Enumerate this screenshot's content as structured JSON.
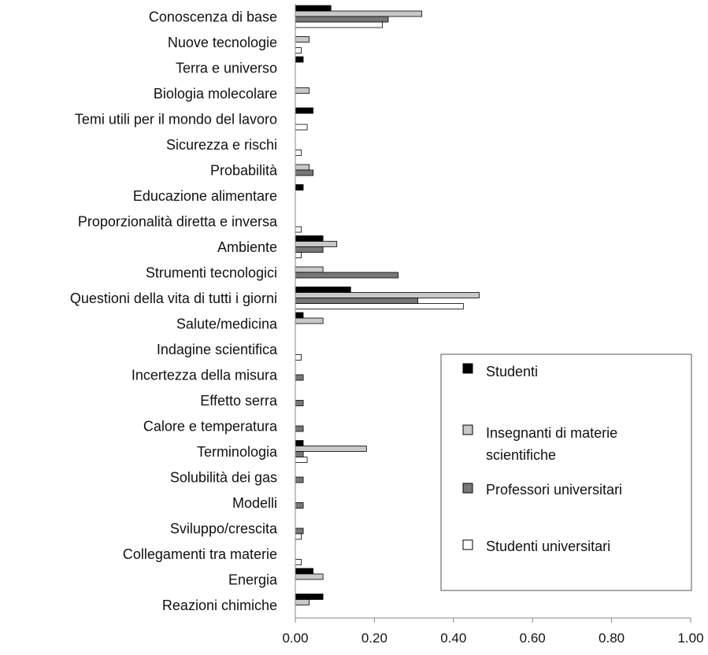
{
  "chart_data": {
    "type": "bar",
    "orientation": "horizontal",
    "categories": [
      "Conoscenza di base",
      "Nuove tecnologie",
      "Terra e universo",
      "Biologia molecolare",
      "Temi utili per il mondo del lavoro",
      "Sicurezza e rischi",
      "Probabilità",
      "Educazione alimentare",
      "Proporzionalità diretta e inversa",
      "Ambiente",
      "Strumenti tecnologici",
      "Questioni della vita di tutti i giorni",
      "Salute/medicina",
      "Indagine scientifica",
      "Incertezza della misura",
      "Effetto serra",
      "Calore e temperatura",
      "Terminologia",
      "Solubilità dei gas",
      "Modelli",
      "Sviluppo/crescita",
      "Collegamenti tra materie",
      "Energia",
      "Reazioni chimiche"
    ],
    "series": [
      {
        "name": "Studenti",
        "color": "#000000",
        "values": [
          0.09,
          0,
          0.02,
          0,
          0.045,
          0,
          0,
          0.02,
          0,
          0.07,
          0,
          0.14,
          0.02,
          0,
          0,
          0,
          0,
          0.02,
          0,
          0,
          0,
          0,
          0.045,
          0.07
        ]
      },
      {
        "name": "Insegnanti di materie scientifiche",
        "color": "#c8c8c8",
        "values": [
          0.32,
          0.035,
          0,
          0.035,
          0,
          0,
          0.035,
          0,
          0,
          0.105,
          0.07,
          0.465,
          0.07,
          0,
          0,
          0,
          0,
          0.18,
          0,
          0,
          0,
          0,
          0.07,
          0.035
        ]
      },
      {
        "name": "Professori universitari",
        "color": "#777777",
        "values": [
          0.235,
          0,
          0,
          0,
          0,
          0,
          0.045,
          0,
          0,
          0.07,
          0.26,
          0.31,
          0,
          0,
          0.02,
          0.02,
          0.02,
          0.02,
          0.02,
          0.02,
          0.02,
          0,
          0,
          0
        ]
      },
      {
        "name": "Studenti universitari",
        "color": "#ffffff",
        "values": [
          0.22,
          0.015,
          0,
          0,
          0.03,
          0.015,
          0,
          0,
          0.015,
          0.015,
          0,
          0.425,
          0,
          0.015,
          0,
          0,
          0,
          0.03,
          0,
          0,
          0.015,
          0.015,
          0,
          0
        ]
      }
    ],
    "x_ticks": [
      "0.00",
      "0.20",
      "0.40",
      "0.60",
      "0.80",
      "1.00"
    ],
    "xlim": [
      0,
      1
    ],
    "legend_position": "bottom-right"
  }
}
